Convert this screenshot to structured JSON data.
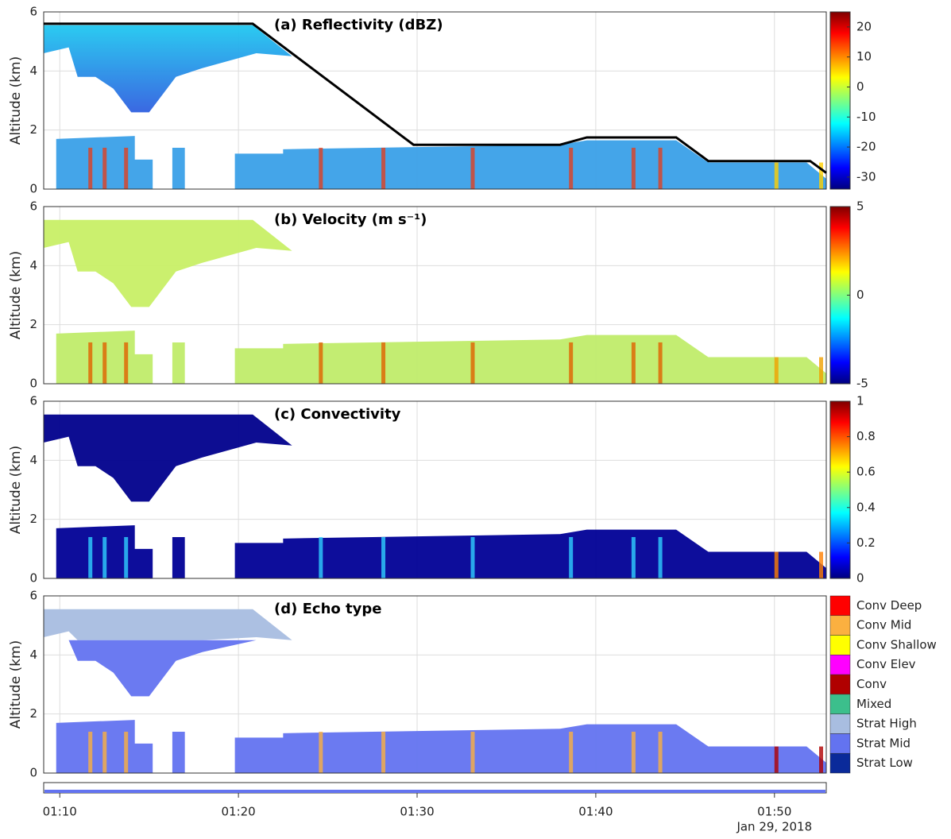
{
  "chart_data": [
    {
      "type": "heatmap",
      "title": "(a) Reflectivity (dBZ)",
      "ylabel": "Altitude (km)",
      "ylim": [
        0,
        6
      ],
      "yticks": [
        0,
        2,
        4,
        6
      ],
      "grid": true,
      "colorbar": {
        "lim": [
          -34,
          25
        ],
        "ticks": [
          -30,
          -20,
          -10,
          0,
          10,
          20
        ]
      },
      "series": [
        {
          "color": "#000000",
          "x": [
            9.1,
            20.8,
            29.8,
            38,
            39.5,
            44.5,
            46.3,
            52,
            52.9
          ],
          "values": [
            5.6,
            5.6,
            1.5,
            1.5,
            1.75,
            1.75,
            0.95,
            0.95,
            0.55
          ]
        }
      ]
    },
    {
      "type": "heatmap",
      "title": "(b) Velocity (m s⁻¹)",
      "ylabel": "Altitude (km)",
      "ylim": [
        0,
        6
      ],
      "yticks": [
        0,
        2,
        4,
        6
      ],
      "grid": true,
      "colorbar": {
        "lim": [
          -5,
          5
        ],
        "ticks": [
          -5,
          0,
          5
        ]
      }
    },
    {
      "type": "heatmap",
      "title": "(c) Convectivity",
      "ylabel": "Altitude (km)",
      "ylim": [
        0,
        6
      ],
      "yticks": [
        0,
        2,
        4,
        6
      ],
      "grid": true,
      "colorbar": {
        "lim": [
          0,
          1
        ],
        "ticks": [
          0,
          0.2,
          0.4,
          0.6,
          0.8,
          1
        ]
      }
    },
    {
      "type": "categorical",
      "title": "(d) Echo type",
      "ylabel": "Altitude (km)",
      "ylim": [
        0,
        6
      ],
      "yticks": [
        0,
        2,
        4,
        6
      ],
      "grid": true,
      "categories": [
        "Conv Deep",
        "Conv Mid",
        "Conv Shallow",
        "Conv Elev",
        "Conv",
        "Mixed",
        "Strat High",
        "Strat Mid",
        "Strat Low"
      ],
      "colors": [
        "#ff0000",
        "#fbb040",
        "#ffff00",
        "#ff00ff",
        "#b00000",
        "#3cbf8c",
        "#a8bde0",
        "#6373f0",
        "#0a2a9a"
      ],
      "xlim": [
        9.1,
        52.9
      ],
      "xticks": [
        {
          "value": 10,
          "label": "01:10"
        },
        {
          "value": 20,
          "label": "01:20"
        },
        {
          "value": 30,
          "label": "01:30"
        },
        {
          "value": 40,
          "label": "01:40"
        },
        {
          "value": 50,
          "label": "01:50"
        }
      ],
      "x_note": "Jan 29, 2018"
    }
  ]
}
